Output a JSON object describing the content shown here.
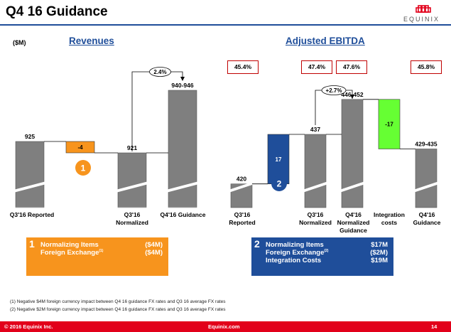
{
  "slide": {
    "title": "Q4 16 Guidance",
    "units": "($M)",
    "brand": "EQUINIX"
  },
  "colors": {
    "bar_gray": "#7f7f7f",
    "negative_orange": "#f7941d",
    "positive_blue": "#1f4e9a",
    "green": "#66ff33",
    "red_accent": "#e2001a",
    "box_red": "#c00000"
  },
  "chart_data": [
    {
      "type": "bar",
      "subtype": "waterfall",
      "title": "Revenues",
      "categories": [
        "Q3'16 Reported",
        "",
        "Q3'16 Normalized",
        "Q4'16 Guidance"
      ],
      "value_labels": [
        "925",
        "-4",
        "921",
        "940-946"
      ],
      "bars": [
        {
          "kind": "total",
          "value": 925
        },
        {
          "kind": "delta",
          "from": 925,
          "to": 921
        },
        {
          "kind": "total",
          "value": 921
        },
        {
          "kind": "total",
          "value": 943
        }
      ],
      "annotations": {
        "growth": "2.4%",
        "marker": "1"
      }
    },
    {
      "type": "bar",
      "subtype": "waterfall",
      "title": "Adjusted EBITDA",
      "categories": [
        "Q3'16 Reported",
        "",
        "Q3'16 Normalized",
        "Q4'16 Normalized Guidance",
        "Integration costs",
        "Q4'16 Guidance"
      ],
      "value_labels": [
        "420",
        "17",
        "437",
        "446-452",
        "-17",
        "429-435"
      ],
      "bars": [
        {
          "kind": "total",
          "value": 420
        },
        {
          "kind": "delta",
          "from": 420,
          "to": 437
        },
        {
          "kind": "total",
          "value": 437
        },
        {
          "kind": "total",
          "value": 449
        },
        {
          "kind": "delta",
          "from": 449,
          "to": 432
        },
        {
          "kind": "total",
          "value": 432
        }
      ],
      "margins": [
        "45.4%",
        "47.4%",
        "47.6%",
        "45.8%"
      ],
      "annotations": {
        "growth": "+2.7%",
        "marker": "2"
      }
    }
  ],
  "revenue_panel": {
    "number": "1",
    "rows": [
      {
        "label": "Normalizing Items",
        "value": "($4M)"
      },
      {
        "label": "Foreign Exchange",
        "sup": "(1)",
        "value": "($4M)"
      }
    ]
  },
  "ebitda_panel": {
    "number": "2",
    "rows": [
      {
        "label": "Normalizing Items",
        "value": "$17M"
      },
      {
        "label": "Foreign Exchange",
        "sup": "(2)",
        "value": "($2M)"
      },
      {
        "label": "Integration Costs",
        "value": "$19M"
      }
    ]
  },
  "footnotes": [
    "(1)   Negative $4M foreign currency impact between Q4 16 guidance FX rates and Q3 16 average FX rates",
    "(2)   Negative $2M foreign currency impact between Q4 16 guidance FX rates and Q3 16 average FX rates"
  ],
  "footer": {
    "copyright": "© 2016 Equinix Inc.",
    "website": "Equinix.com",
    "page": "14"
  }
}
